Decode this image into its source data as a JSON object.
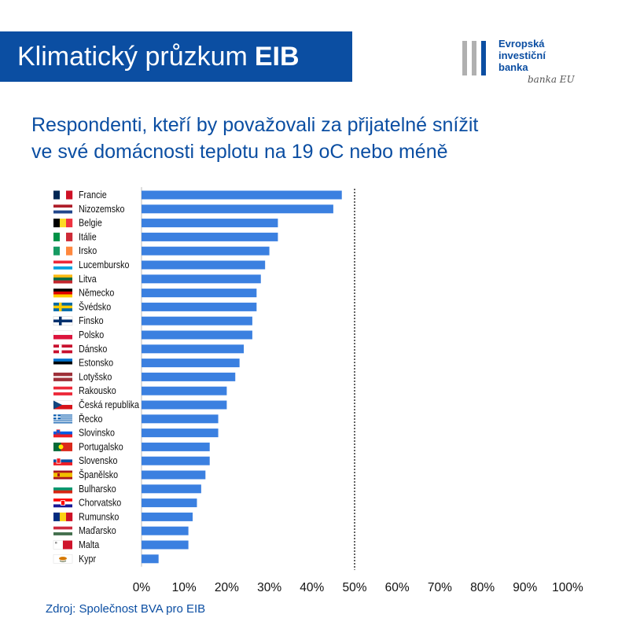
{
  "header": {
    "title_main": "Klimatický průzkum",
    "title_bold": "EIB"
  },
  "logo": {
    "line1": "Evropská",
    "line2": "investiční",
    "line3": "banka",
    "signature": "banka EU",
    "bar_colors": [
      "#b0b0b0",
      "#b0b0b0",
      "#0b4ea2"
    ]
  },
  "subtitle": {
    "line1": "Respondenti, kteří by považovali za přijatelné snížit",
    "line2": "ve své domácnosti teplotu na 19 oC nebo méně"
  },
  "source": "Zdroj: Společnost BVA pro EIB",
  "colors": {
    "bar": "#3b80e0",
    "accent": "#0b4ea2",
    "text": "#111111"
  },
  "chart_data": {
    "type": "bar",
    "orientation": "horizontal",
    "categories": [
      "Francie",
      "Nizozemsko",
      "Belgie",
      "Itálie",
      "Irsko",
      "Lucembursko",
      "Litva",
      "Německo",
      "Švédsko",
      "Finsko",
      "Polsko",
      "Dánsko",
      "Estonsko",
      "Lotyšsko",
      "Rakousko",
      "Česká republika",
      "Řecko",
      "Slovinsko",
      "Portugalsko",
      "Slovensko",
      "Španělsko",
      "Bulharsko",
      "Chorvatsko",
      "Rumunsko",
      "Maďarsko",
      "Malta",
      "Kypr"
    ],
    "values": [
      47,
      45,
      32,
      32,
      30,
      29,
      28,
      27,
      27,
      26,
      26,
      24,
      23,
      22,
      20,
      20,
      18,
      18,
      16,
      16,
      15,
      14,
      13,
      12,
      11,
      11,
      4
    ],
    "flags": [
      "fr",
      "nl",
      "be",
      "it",
      "ie",
      "lu",
      "lt",
      "de",
      "se",
      "fi",
      "pl",
      "dk",
      "ee",
      "lv",
      "at",
      "cz",
      "gr",
      "si",
      "pt",
      "sk",
      "es",
      "bg",
      "hr",
      "ro",
      "hu",
      "mt",
      "cy"
    ],
    "xticks": [
      "0%",
      "10%",
      "20%",
      "30%",
      "40%",
      "50%",
      "60%",
      "70%",
      "80%",
      "90%",
      "100%"
    ],
    "xlim": [
      0,
      100
    ],
    "reference_line": 50,
    "grid": false
  }
}
